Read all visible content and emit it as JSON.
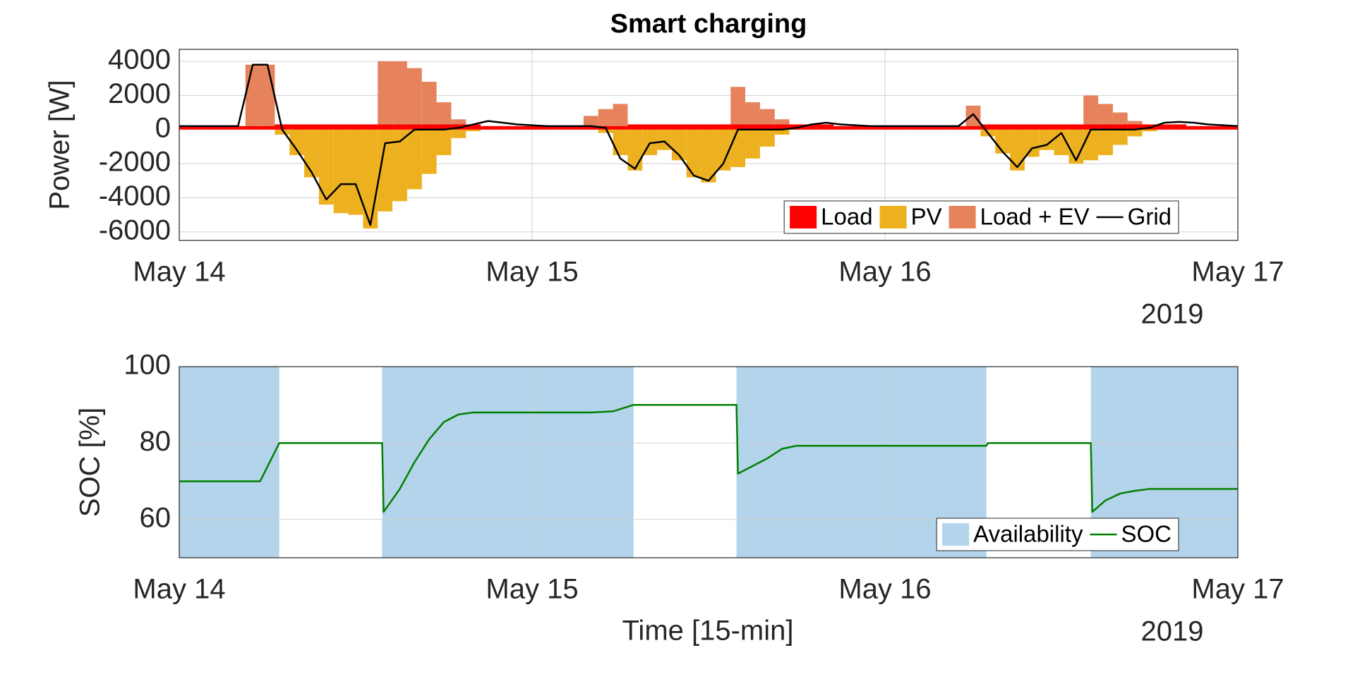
{
  "chart_data": [
    {
      "type": "combo",
      "title": "Smart charging",
      "ylabel": "Power [W]",
      "xaxis_year": "2019",
      "x": [
        0,
        1,
        2,
        3,
        4,
        5,
        6,
        7,
        8,
        9,
        10,
        11,
        12,
        13,
        14,
        15,
        16,
        17,
        18,
        19,
        20,
        21,
        22,
        23,
        24,
        25,
        26,
        27,
        28,
        29,
        30,
        31,
        32,
        33,
        34,
        35,
        36,
        37,
        38,
        39,
        40,
        41,
        42,
        43,
        44,
        45,
        46,
        47,
        48,
        49,
        50,
        51,
        52,
        53,
        54,
        55,
        56,
        57,
        58,
        59,
        60,
        61,
        62,
        63,
        64,
        65,
        66,
        67,
        68,
        69,
        70,
        71,
        72
      ],
      "series": [
        {
          "name": "Load",
          "type": "bar",
          "color": "#ff0000",
          "values": [
            200,
            200,
            200,
            200,
            200,
            200,
            200,
            300,
            300,
            300,
            300,
            300,
            300,
            300,
            300,
            300,
            300,
            300,
            300,
            300,
            300,
            200,
            200,
            200,
            200,
            200,
            200,
            200,
            200,
            200,
            200,
            300,
            300,
            300,
            300,
            300,
            300,
            300,
            300,
            300,
            300,
            300,
            300,
            300,
            300,
            200,
            200,
            200,
            200,
            200,
            200,
            200,
            200,
            200,
            200,
            300,
            300,
            300,
            300,
            300,
            300,
            300,
            300,
            300,
            300,
            300,
            300,
            300,
            300,
            200,
            200,
            200,
            200
          ]
        },
        {
          "name": "PV",
          "type": "bar",
          "color": "#edb120",
          "values": [
            0,
            0,
            0,
            0,
            0,
            0,
            0,
            -300,
            -1500,
            -2800,
            -4400,
            -4900,
            -5000,
            -5800,
            -4800,
            -4200,
            -3500,
            -2600,
            -1500,
            -500,
            -100,
            0,
            0,
            0,
            0,
            0,
            0,
            0,
            0,
            -200,
            -1500,
            -2400,
            -1500,
            -1200,
            -1800,
            -2800,
            -3100,
            -2400,
            -2200,
            -1700,
            -1000,
            -300,
            0,
            0,
            0,
            0,
            0,
            0,
            0,
            0,
            0,
            0,
            0,
            0,
            0,
            -400,
            -1400,
            -2400,
            -1600,
            -1200,
            -1500,
            -2000,
            -1800,
            -1500,
            -900,
            -400,
            -100,
            0,
            0,
            0,
            0,
            0,
            0
          ]
        },
        {
          "name": "Load + EV",
          "type": "bar",
          "color": "#e6825c",
          "values": [
            200,
            200,
            200,
            200,
            200,
            3800,
            3800,
            300,
            300,
            300,
            300,
            300,
            300,
            300,
            4000,
            4000,
            3600,
            2800,
            1600,
            600,
            300,
            200,
            200,
            200,
            200,
            200,
            200,
            200,
            800,
            1200,
            1500,
            300,
            300,
            300,
            300,
            300,
            300,
            300,
            2500,
            1600,
            1200,
            600,
            300,
            300,
            300,
            200,
            200,
            200,
            200,
            200,
            200,
            200,
            200,
            200,
            1400,
            300,
            300,
            300,
            300,
            300,
            300,
            300,
            2000,
            1500,
            1000,
            500,
            300,
            300,
            300,
            200,
            200,
            200,
            200
          ]
        },
        {
          "name": "Grid",
          "type": "line",
          "color": "#000000",
          "values": [
            200,
            200,
            200,
            200,
            200,
            3800,
            3800,
            0,
            -1200,
            -2500,
            -4100,
            -3200,
            -3200,
            -5600,
            -800,
            -700,
            0,
            0,
            0,
            100,
            300,
            500,
            400,
            300,
            250,
            200,
            200,
            200,
            200,
            100,
            -1700,
            -2300,
            -800,
            -700,
            -1500,
            -2700,
            -3000,
            -2000,
            0,
            0,
            0,
            0,
            100,
            300,
            400,
            300,
            250,
            200,
            200,
            200,
            200,
            200,
            200,
            200,
            900,
            -200,
            -1300,
            -2200,
            -1100,
            -900,
            -200,
            -1800,
            0,
            0,
            0,
            0,
            100,
            400,
            450,
            400,
            300,
            250,
            200
          ]
        }
      ],
      "xlim": [
        0,
        72
      ],
      "xticks": [
        {
          "value": 0,
          "label": "May 14"
        },
        {
          "value": 24,
          "label": "May 15"
        },
        {
          "value": 48,
          "label": "May 16"
        },
        {
          "value": 72,
          "label": "May 17"
        }
      ],
      "ylim": [
        -6500,
        4700
      ],
      "yticks": [
        -6000,
        -4000,
        -2000,
        0,
        2000,
        4000
      ],
      "grid": true,
      "legend": "southeast"
    },
    {
      "type": "line",
      "ylabel": "SOC [%]",
      "xlabel": "Time [15-min]",
      "xaxis_year": "2019",
      "x": [
        0,
        5.5,
        6.8,
        13.8,
        13.9,
        15,
        16,
        17,
        18,
        19,
        20,
        28,
        29.5,
        30.9,
        37.9,
        38,
        39,
        40,
        41,
        42,
        54.9,
        55,
        62,
        62.1,
        63,
        64,
        65,
        66,
        72
      ],
      "series": [
        {
          "name": "Availability",
          "type": "span",
          "color": "#b3d4ea",
          "spans": [
            [
              0,
              6.8
            ],
            [
              13.8,
              30.9
            ],
            [
              37.9,
              54.9
            ],
            [
              62,
              72
            ]
          ]
        },
        {
          "name": "SOC",
          "type": "line",
          "color": "#008000",
          "values": [
            70,
            70,
            80,
            80,
            62,
            68,
            75,
            81,
            85.5,
            87.5,
            88,
            88,
            88.3,
            90,
            90,
            72,
            74,
            76,
            78.5,
            79.3,
            79.3,
            80,
            80,
            62,
            65,
            66.8,
            67.5,
            68,
            68
          ]
        }
      ],
      "xlim": [
        0,
        72
      ],
      "xticks": [
        {
          "value": 0,
          "label": "May 14"
        },
        {
          "value": 24,
          "label": "May 15"
        },
        {
          "value": 48,
          "label": "May 16"
        },
        {
          "value": 72,
          "label": "May 17"
        }
      ],
      "ylim": [
        50,
        100
      ],
      "yticks": [
        60,
        80,
        100
      ],
      "grid": true,
      "legend": "southeast"
    }
  ]
}
